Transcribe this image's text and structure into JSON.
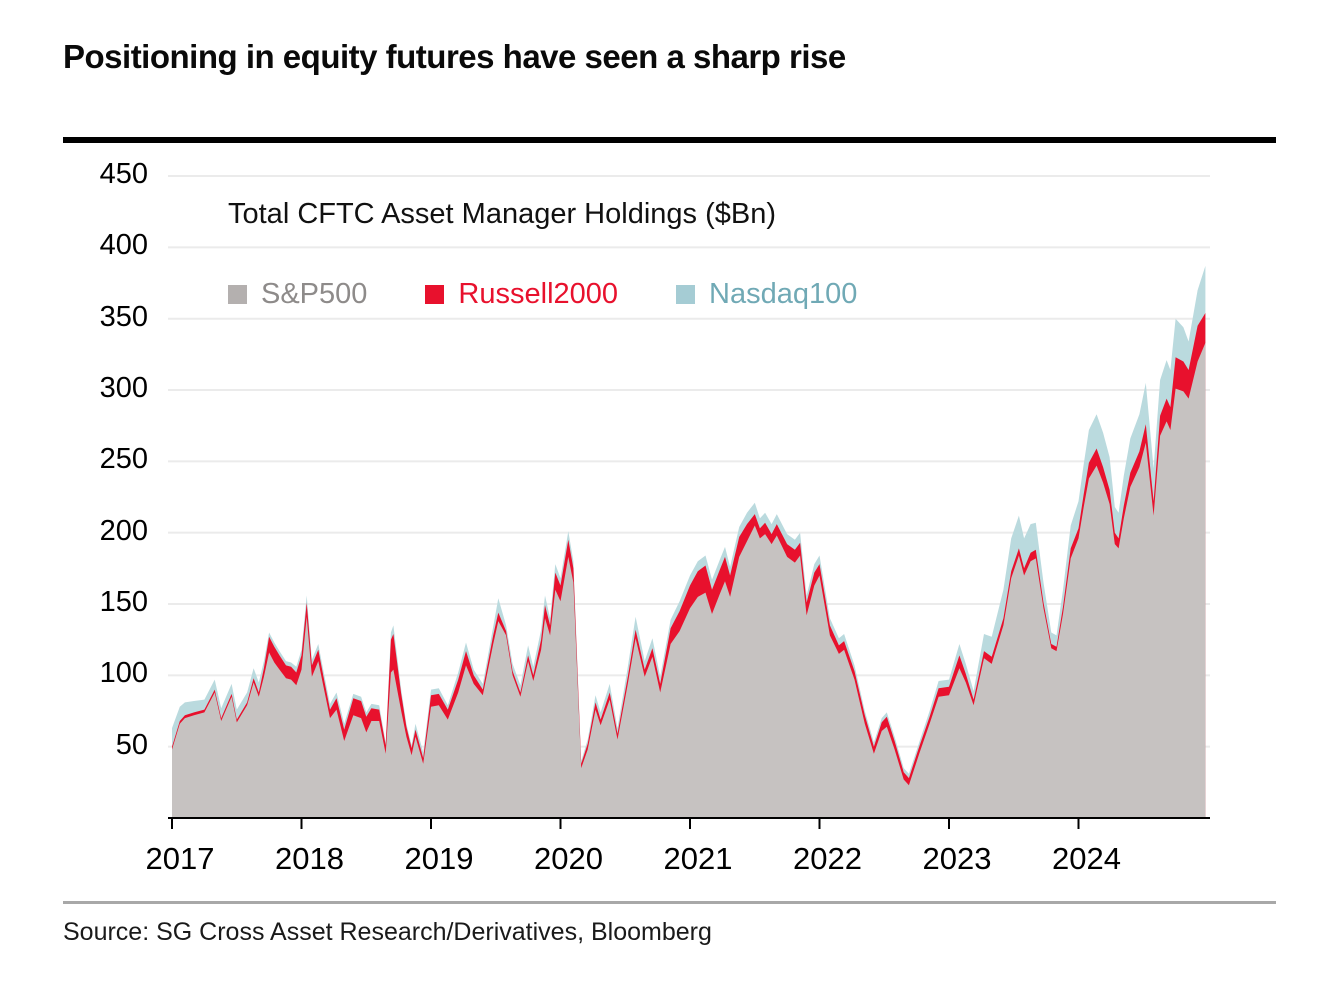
{
  "header": {
    "title": "Positioning in equity futures have seen a sharp rise"
  },
  "source_line": "Source: SG Cross Asset Research/Derivatives, Bloomberg",
  "chart_data": {
    "type": "area",
    "stacked": true,
    "title": "Total CFTC Asset Manager Holdings ($Bn)",
    "xlabel": "",
    "ylabel": "",
    "ylim": [
      0,
      460
    ],
    "yticks": [
      450,
      400,
      350,
      300,
      250,
      200,
      150,
      100,
      50
    ],
    "xticks": [
      2017,
      2018,
      2019,
      2020,
      2021,
      2022,
      2023,
      2024
    ],
    "grid": true,
    "legend_position": "top-left",
    "colors": {
      "sp500_area": "#c6c2c1",
      "sp500_legend": "#b4b0af",
      "sp500_text": "#8e8b8a",
      "russell_area": "#e8112d",
      "russell_text": "#e8112d",
      "nasdaq_area": "#badade",
      "nasdaq_legend": "#a5ccd4",
      "nasdaq_text": "#70a9b5",
      "gridline": "#ebebeb",
      "axis": "#000000"
    },
    "x": [
      2017.0,
      2017.06,
      2017.1,
      2017.17,
      2017.25,
      2017.33,
      2017.38,
      2017.46,
      2017.5,
      2017.58,
      2017.63,
      2017.67,
      2017.71,
      2017.75,
      2017.79,
      2017.83,
      2017.88,
      2017.92,
      2017.96,
      2018.0,
      2018.04,
      2018.08,
      2018.13,
      2018.17,
      2018.22,
      2018.27,
      2018.33,
      2018.4,
      2018.46,
      2018.5,
      2018.54,
      2018.6,
      2018.65,
      2018.69,
      2018.71,
      2018.77,
      2018.81,
      2018.85,
      2018.88,
      2018.94,
      2019.0,
      2019.06,
      2019.13,
      2019.21,
      2019.27,
      2019.33,
      2019.4,
      2019.48,
      2019.52,
      2019.58,
      2019.63,
      2019.69,
      2019.75,
      2019.79,
      2019.85,
      2019.88,
      2019.92,
      2019.96,
      2020.0,
      2020.06,
      2020.1,
      2020.16,
      2020.21,
      2020.27,
      2020.31,
      2020.38,
      2020.44,
      2020.52,
      2020.58,
      2020.65,
      2020.71,
      2020.77,
      2020.85,
      2020.92,
      2021.0,
      2021.06,
      2021.12,
      2021.17,
      2021.23,
      2021.27,
      2021.31,
      2021.38,
      2021.44,
      2021.5,
      2021.54,
      2021.58,
      2021.63,
      2021.67,
      2021.75,
      2021.81,
      2021.85,
      2021.9,
      2021.96,
      2022.0,
      2022.08,
      2022.15,
      2022.19,
      2022.27,
      2022.35,
      2022.42,
      2022.48,
      2022.52,
      2022.58,
      2022.65,
      2022.69,
      2022.77,
      2022.85,
      2022.92,
      2023.0,
      2023.08,
      2023.13,
      2023.19,
      2023.27,
      2023.33,
      2023.42,
      2023.48,
      2023.54,
      2023.58,
      2023.63,
      2023.67,
      2023.73,
      2023.79,
      2023.83,
      2023.88,
      2023.94,
      2024.0,
      2024.04,
      2024.08,
      2024.14,
      2024.19,
      2024.24,
      2024.28,
      2024.31,
      2024.35,
      2024.4,
      2024.47,
      2024.52,
      2024.58,
      2024.63,
      2024.68,
      2024.71,
      2024.75,
      2024.81,
      2024.85,
      2024.92,
      2024.98
    ],
    "series": [
      {
        "name": "S&P500",
        "values": [
          48,
          66,
          70,
          72,
          74,
          88,
          68,
          85,
          67,
          79,
          95,
          85,
          99,
          116,
          109,
          104,
          98,
          97,
          93,
          104,
          141,
          99,
          110,
          92,
          70,
          76,
          54,
          72,
          70,
          60,
          68,
          68,
          45,
          102,
          104,
          75,
          57,
          44,
          57,
          38,
          78,
          79,
          69,
          88,
          107,
          94,
          86,
          122,
          138,
          128,
          100,
          85,
          110,
          96,
          118,
          140,
          128,
          160,
          152,
          183,
          165,
          35,
          48,
          76,
          65,
          83,
          55,
          94,
          126,
          99,
          113,
          88,
          122,
          131,
          147,
          155,
          158,
          143,
          157,
          166,
          155,
          183,
          194,
          205,
          196,
          199,
          192,
          198,
          183,
          179,
          184,
          142,
          163,
          170,
          128,
          115,
          118,
          97,
          66,
          45,
          61,
          64,
          48,
          27,
          23,
          45,
          66,
          85,
          86,
          105,
          95,
          79,
          112,
          108,
          135,
          168,
          184,
          170,
          180,
          182,
          147,
          119,
          117,
          143,
          182,
          196,
          218,
          238,
          247,
          235,
          220,
          192,
          189,
          210,
          232,
          246,
          263,
          212,
          268,
          278,
          272,
          301,
          299,
          294,
          320,
          333
        ]
      },
      {
        "name": "Russell2000",
        "values": [
          2,
          2,
          2,
          2,
          2,
          2,
          2,
          2,
          2,
          2,
          3,
          3,
          6,
          11,
          11,
          10,
          9,
          9,
          9,
          10,
          10,
          8,
          8,
          7,
          6,
          8,
          8,
          12,
          12,
          11,
          9,
          8,
          6,
          23,
          25,
          12,
          7,
          5,
          5,
          4,
          8,
          8,
          7,
          9,
          10,
          6,
          4,
          6,
          6,
          3,
          3,
          3,
          4,
          4,
          7,
          9,
          7,
          12,
          11,
          12,
          10,
          3,
          4,
          5,
          4,
          5,
          4,
          5,
          6,
          5,
          6,
          6,
          11,
          14,
          16,
          18,
          19,
          17,
          17,
          17,
          15,
          14,
          12,
          8,
          7,
          8,
          7,
          8,
          9,
          9,
          9,
          9,
          9,
          8,
          7,
          6,
          6,
          6,
          6,
          5,
          6,
          7,
          6,
          5,
          5,
          5,
          5,
          6,
          6,
          9,
          6,
          4,
          5,
          5,
          5,
          5,
          5,
          5,
          6,
          6,
          4,
          3,
          3,
          5,
          7,
          7,
          9,
          11,
          12,
          11,
          10,
          8,
          7,
          9,
          10,
          11,
          13,
          10,
          14,
          16,
          16,
          22,
          21,
          20,
          25,
          21
        ]
      },
      {
        "name": "Nasdaq100",
        "values": [
          13,
          10,
          9,
          8,
          7,
          7,
          7,
          7,
          7,
          7,
          7,
          7,
          5,
          3,
          3,
          3,
          3,
          3,
          4,
          4,
          5,
          4,
          4,
          4,
          4,
          4,
          4,
          3,
          3,
          3,
          3,
          3,
          2,
          5,
          6,
          3,
          2,
          2,
          4,
          4,
          4,
          4,
          3,
          5,
          6,
          4,
          4,
          6,
          10,
          4,
          5,
          5,
          7,
          6,
          7,
          7,
          5,
          6,
          5,
          6,
          5,
          2,
          3,
          5,
          5,
          6,
          4,
          7,
          9,
          6,
          7,
          5,
          6,
          7,
          7,
          7,
          7,
          7,
          7,
          7,
          6,
          7,
          8,
          8,
          7,
          7,
          7,
          7,
          7,
          7,
          7,
          5,
          6,
          6,
          5,
          5,
          5,
          4,
          3,
          3,
          3,
          3,
          3,
          3,
          3,
          3,
          4,
          5,
          5,
          8,
          7,
          6,
          12,
          14,
          20,
          23,
          23,
          21,
          20,
          19,
          14,
          8,
          8,
          12,
          16,
          19,
          21,
          23,
          24,
          24,
          23,
          18,
          18,
          21,
          24,
          26,
          29,
          23,
          25,
          27,
          26,
          27,
          24,
          20,
          25,
          33
        ]
      }
    ]
  },
  "legend": {
    "items": [
      {
        "label": "S&P500"
      },
      {
        "label": "Russell2000"
      },
      {
        "label": "Nasdaq100"
      }
    ]
  }
}
